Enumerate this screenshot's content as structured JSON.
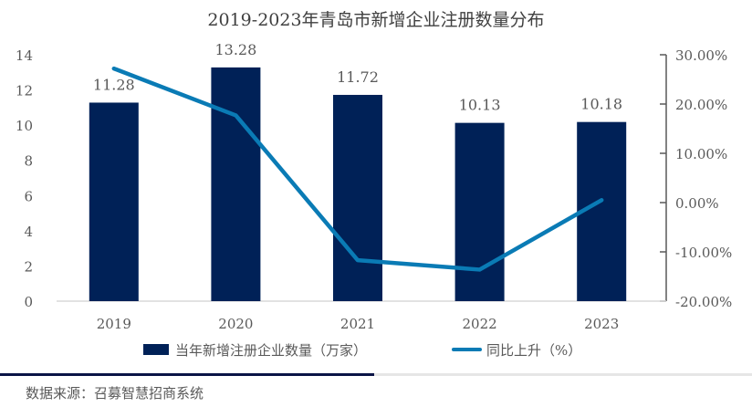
{
  "chart_data": {
    "type": "bar+line",
    "title": "2019-2023年青岛市新增企业注册数量分布",
    "categories": [
      "2019",
      "2020",
      "2021",
      "2022",
      "2023"
    ],
    "series": [
      {
        "name": "当年新增注册企业数量（万家）",
        "type": "bar",
        "axis": "left",
        "values": [
          11.28,
          13.28,
          11.72,
          10.13,
          10.18
        ],
        "labels": [
          "11.28",
          "13.28",
          "11.72",
          "10.13",
          "10.18"
        ],
        "color": "#002157"
      },
      {
        "name": "同比上升（%）",
        "type": "line",
        "axis": "right",
        "values": [
          27.2,
          17.7,
          -11.7,
          -13.6,
          0.5
        ],
        "color": "#0A7BB5"
      }
    ],
    "left_axis": {
      "ylim": [
        0,
        14
      ],
      "ticks": [
        "0",
        "2",
        "4",
        "6",
        "8",
        "10",
        "12",
        "14"
      ]
    },
    "right_axis": {
      "ylim": [
        -20,
        30
      ],
      "ticks": [
        "-20.00%",
        "-10.00%",
        "0.00%",
        "10.00%",
        "20.00%",
        "30.00%"
      ]
    },
    "grid": false,
    "legend": "bottom"
  },
  "footer": {
    "source": "数据来源：召募智慧招商系统"
  },
  "colors": {
    "divider_dark": "#0A1446",
    "divider_light": "#E6E6E6"
  }
}
